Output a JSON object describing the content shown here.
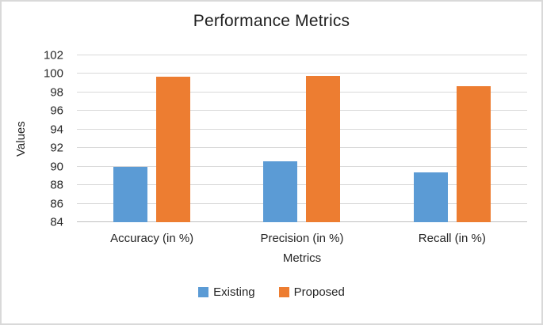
{
  "chart_data": {
    "type": "bar",
    "title": "Performance Metrics",
    "categories": [
      "Accuracy (in %)",
      "Precision (in %)",
      "Recall (in %)"
    ],
    "series": [
      {
        "name": "Existing",
        "color": "#5B9BD5",
        "values": [
          90,
          90.6,
          89.4
        ]
      },
      {
        "name": "Proposed",
        "color": "#ED7D31",
        "values": [
          99.7,
          99.8,
          98.7
        ]
      }
    ],
    "xlabel": "Metrics",
    "ylabel": "Values",
    "ylim": [
      84,
      102
    ],
    "ytick_step": 2,
    "yticks": [
      84,
      86,
      88,
      90,
      92,
      94,
      96,
      98,
      100,
      102
    ],
    "grid": true,
    "legend_position": "bottom",
    "colors": {
      "gridline": "#D9D9D9",
      "axis_line": "#BFBFBF",
      "text": "#262626",
      "frame_border": "#D9D9D9",
      "background": "#FFFFFF"
    }
  }
}
